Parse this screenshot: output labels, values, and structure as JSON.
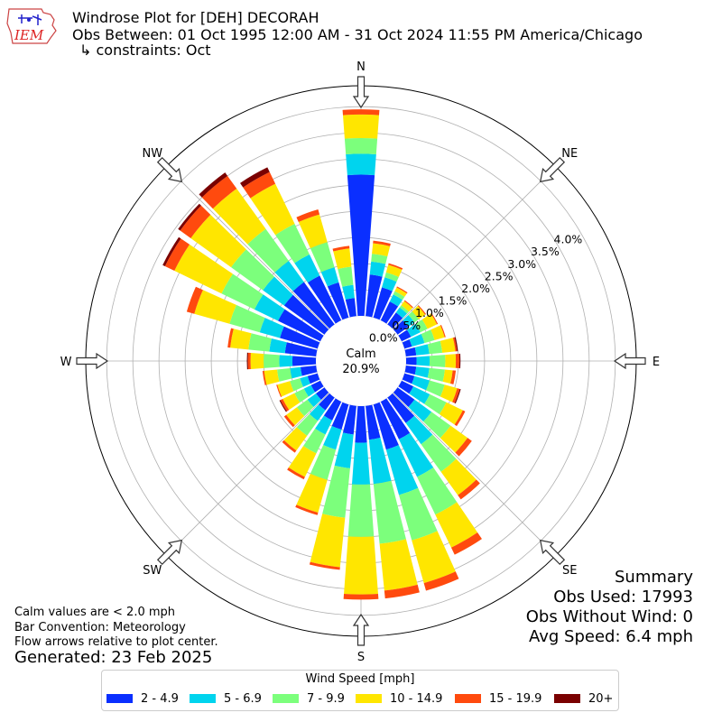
{
  "header": {
    "logo_text": "IEM",
    "title": "Windrose Plot for [DEH] DECORAH",
    "obs_between": "Obs Between: 01 Oct 1995 12:00 AM - 31 Oct 2024 11:55 PM America/Chicago",
    "constraints": "↳ constraints: Oct"
  },
  "notes": {
    "calm_def": "Calm values are < 2.0 mph",
    "bar_convention": "Bar Convention: Meteorology",
    "flow_arrows": "Flow arrows relative to plot center.",
    "generated": "Generated: 23 Feb 2025"
  },
  "summary": {
    "title": "Summary",
    "obs_used": "Obs Used: 17993",
    "obs_without_wind": "Obs Without Wind: 0",
    "avg_speed": "Avg Speed: 6.4 mph"
  },
  "legend": {
    "title": "Wind Speed [mph]",
    "items": [
      {
        "label": "2 - 4.9",
        "color": "#0a2fff"
      },
      {
        "label": "5 - 6.9",
        "color": "#00d4ee"
      },
      {
        "label": "7 - 9.9",
        "color": "#7cff7c"
      },
      {
        "label": "10 - 14.9",
        "color": "#ffe600"
      },
      {
        "label": "15 - 19.9",
        "color": "#ff4a0e"
      },
      {
        "label": "20+",
        "color": "#7a0000"
      }
    ]
  },
  "chart_data": {
    "type": "windrose",
    "calm_label": "Calm",
    "calm_value": "20.9%",
    "cardinal_labels": [
      "N",
      "NE",
      "E",
      "SE",
      "S",
      "SW",
      "W",
      "NW"
    ],
    "radial_ticks": [
      "0.0%",
      "0.5%",
      "1.0%",
      "1.5%",
      "2.0%",
      "2.5%",
      "3.0%",
      "3.5%",
      "4.0%"
    ],
    "rmax_percent": 4.4,
    "direction_degrees": [
      0,
      10,
      20,
      30,
      40,
      50,
      60,
      70,
      80,
      90,
      100,
      110,
      120,
      130,
      140,
      150,
      160,
      170,
      180,
      190,
      200,
      210,
      220,
      230,
      240,
      250,
      260,
      270,
      280,
      290,
      300,
      310,
      320,
      330,
      340,
      350
    ],
    "speed_bins": [
      "2 - 4.9",
      "5 - 6.9",
      "7 - 9.9",
      "10 - 14.9",
      "15 - 19.9",
      "20+"
    ],
    "cumulative_percent": [
      [
        2.7,
        3.1,
        3.4,
        3.85,
        3.95,
        3.95
      ],
      [
        0.8,
        1.05,
        1.2,
        1.4,
        1.45,
        1.45
      ],
      [
        0.6,
        0.8,
        0.9,
        1.05,
        1.08,
        1.08
      ],
      [
        0.4,
        0.55,
        0.62,
        0.7,
        0.72,
        0.72
      ],
      [
        0.28,
        0.4,
        0.45,
        0.55,
        0.57,
        0.57
      ],
      [
        0.25,
        0.4,
        0.5,
        0.65,
        0.67,
        0.67
      ],
      [
        0.2,
        0.4,
        0.55,
        0.75,
        0.77,
        0.77
      ],
      [
        0.15,
        0.4,
        0.6,
        0.8,
        0.82,
        0.82
      ],
      [
        0.2,
        0.45,
        0.7,
        0.95,
        0.98,
        1.0
      ],
      [
        0.2,
        0.45,
        0.75,
        0.95,
        1.02,
        1.04
      ],
      [
        0.2,
        0.45,
        0.75,
        0.9,
        0.96,
        0.96
      ],
      [
        0.2,
        0.5,
        0.8,
        1.05,
        1.1,
        1.12
      ],
      [
        0.25,
        0.6,
        0.95,
        1.3,
        1.35,
        1.35
      ],
      [
        0.4,
        0.8,
        1.25,
        1.65,
        1.75,
        1.75
      ],
      [
        0.6,
        1.1,
        1.75,
        2.3,
        2.4,
        2.4
      ],
      [
        0.8,
        1.6,
        2.4,
        3.1,
        3.25,
        3.25
      ],
      [
        0.9,
        1.8,
        2.7,
        3.55,
        3.7,
        3.7
      ],
      [
        0.65,
        1.5,
        2.65,
        3.55,
        3.7,
        3.7
      ],
      [
        0.7,
        1.5,
        2.5,
        3.6,
        3.7,
        3.7
      ],
      [
        0.55,
        1.2,
        2.15,
        3.1,
        3.15,
        3.15
      ],
      [
        0.5,
        0.9,
        1.5,
        2.15,
        2.2,
        2.2
      ],
      [
        0.4,
        0.7,
        1.1,
        1.6,
        1.65,
        1.65
      ],
      [
        0.3,
        0.55,
        0.9,
        1.25,
        1.3,
        1.3
      ],
      [
        0.2,
        0.4,
        0.65,
        0.9,
        0.95,
        0.95
      ],
      [
        0.2,
        0.35,
        0.55,
        0.8,
        0.85,
        0.87
      ],
      [
        0.2,
        0.35,
        0.55,
        0.8,
        0.82,
        0.82
      ],
      [
        0.3,
        0.5,
        0.75,
        1.0,
        1.03,
        1.03
      ],
      [
        0.45,
        0.7,
        1.0,
        1.25,
        1.3,
        1.32
      ],
      [
        0.6,
        0.9,
        1.3,
        1.65,
        1.7,
        1.7
      ],
      [
        0.75,
        1.15,
        1.75,
        2.45,
        2.6,
        2.6
      ],
      [
        0.9,
        1.4,
        2.1,
        3.1,
        3.3,
        3.35
      ],
      [
        0.95,
        1.45,
        2.2,
        3.15,
        3.4,
        3.45
      ],
      [
        1.0,
        1.5,
        2.25,
        3.2,
        3.5,
        3.58
      ],
      [
        0.95,
        1.4,
        2.05,
        2.9,
        3.15,
        3.25
      ],
      [
        0.7,
        1.0,
        1.5,
        2.05,
        2.15,
        2.15
      ],
      [
        0.35,
        0.6,
        0.95,
        1.3,
        1.35,
        1.35
      ]
    ]
  }
}
